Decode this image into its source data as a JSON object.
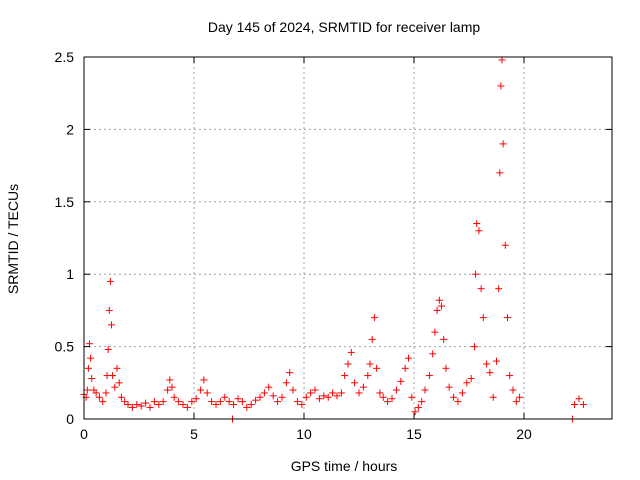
{
  "chart_data": {
    "type": "scatter",
    "title": "Day 145 of 2024, SRMTID for receiver lamp",
    "xlabel": "GPS time / hours",
    "ylabel": "SRMTID / TECUs",
    "xlim": [
      0,
      24
    ],
    "ylim": [
      0,
      2.5
    ],
    "xticks": [
      0,
      5,
      10,
      15,
      20
    ],
    "yticks": [
      0,
      0.5,
      1,
      1.5,
      2,
      2.5
    ],
    "xtick_labels": [
      "0",
      "5",
      "10",
      "15",
      "20"
    ],
    "ytick_labels": [
      "0",
      "0.5",
      "1",
      "1.5",
      "2",
      "2.5"
    ],
    "grid": true,
    "marker": "+",
    "color": "#ff0000",
    "series": [
      {
        "name": "SRMTID",
        "points": [
          [
            0.0,
            0.17
          ],
          [
            0.1,
            0.15
          ],
          [
            0.15,
            0.2
          ],
          [
            0.2,
            0.35
          ],
          [
            0.25,
            0.52
          ],
          [
            0.3,
            0.42
          ],
          [
            0.35,
            0.28
          ],
          [
            0.45,
            0.2
          ],
          [
            0.55,
            0.18
          ],
          [
            0.7,
            0.15
          ],
          [
            0.85,
            0.12
          ],
          [
            1.0,
            0.18
          ],
          [
            1.05,
            0.3
          ],
          [
            1.1,
            0.48
          ],
          [
            1.15,
            0.75
          ],
          [
            1.2,
            0.95
          ],
          [
            1.25,
            0.65
          ],
          [
            1.3,
            0.3
          ],
          [
            1.4,
            0.22
          ],
          [
            1.5,
            0.35
          ],
          [
            1.6,
            0.25
          ],
          [
            1.7,
            0.15
          ],
          [
            1.85,
            0.12
          ],
          [
            2.0,
            0.1
          ],
          [
            2.2,
            0.08
          ],
          [
            2.4,
            0.1
          ],
          [
            2.6,
            0.09
          ],
          [
            2.8,
            0.11
          ],
          [
            3.0,
            0.08
          ],
          [
            3.2,
            0.12
          ],
          [
            3.4,
            0.1
          ],
          [
            3.6,
            0.12
          ],
          [
            3.8,
            0.2
          ],
          [
            3.9,
            0.27
          ],
          [
            4.0,
            0.22
          ],
          [
            4.1,
            0.15
          ],
          [
            4.3,
            0.12
          ],
          [
            4.5,
            0.1
          ],
          [
            4.7,
            0.08
          ],
          [
            4.9,
            0.12
          ],
          [
            5.1,
            0.14
          ],
          [
            5.3,
            0.2
          ],
          [
            5.45,
            0.27
          ],
          [
            5.6,
            0.18
          ],
          [
            5.8,
            0.12
          ],
          [
            6.0,
            0.1
          ],
          [
            6.2,
            0.12
          ],
          [
            6.4,
            0.15
          ],
          [
            6.6,
            0.12
          ],
          [
            6.75,
            0.0
          ],
          [
            6.8,
            0.1
          ],
          [
            7.0,
            0.14
          ],
          [
            7.2,
            0.12
          ],
          [
            7.4,
            0.08
          ],
          [
            7.6,
            0.1
          ],
          [
            7.8,
            0.13
          ],
          [
            8.0,
            0.15
          ],
          [
            8.2,
            0.18
          ],
          [
            8.4,
            0.22
          ],
          [
            8.6,
            0.16
          ],
          [
            8.8,
            0.12
          ],
          [
            9.0,
            0.15
          ],
          [
            9.2,
            0.25
          ],
          [
            9.35,
            0.32
          ],
          [
            9.5,
            0.2
          ],
          [
            9.7,
            0.12
          ],
          [
            9.9,
            0.1
          ],
          [
            10.1,
            0.15
          ],
          [
            10.3,
            0.18
          ],
          [
            10.5,
            0.2
          ],
          [
            10.7,
            0.14
          ],
          [
            10.9,
            0.16
          ],
          [
            11.1,
            0.15
          ],
          [
            11.3,
            0.18
          ],
          [
            11.5,
            0.16
          ],
          [
            11.7,
            0.18
          ],
          [
            11.85,
            0.3
          ],
          [
            12.0,
            0.38
          ],
          [
            12.15,
            0.46
          ],
          [
            12.3,
            0.25
          ],
          [
            12.5,
            0.18
          ],
          [
            12.7,
            0.22
          ],
          [
            12.9,
            0.3
          ],
          [
            13.0,
            0.38
          ],
          [
            13.1,
            0.55
          ],
          [
            13.2,
            0.7
          ],
          [
            13.3,
            0.35
          ],
          [
            13.45,
            0.18
          ],
          [
            13.6,
            0.15
          ],
          [
            13.8,
            0.12
          ],
          [
            14.0,
            0.14
          ],
          [
            14.2,
            0.2
          ],
          [
            14.4,
            0.26
          ],
          [
            14.6,
            0.35
          ],
          [
            14.75,
            0.42
          ],
          [
            14.9,
            0.15
          ],
          [
            15.05,
            0.05
          ],
          [
            15.2,
            0.08
          ],
          [
            15.35,
            0.12
          ],
          [
            15.5,
            0.2
          ],
          [
            15.7,
            0.3
          ],
          [
            15.85,
            0.45
          ],
          [
            15.95,
            0.6
          ],
          [
            16.05,
            0.75
          ],
          [
            16.15,
            0.82
          ],
          [
            16.25,
            0.78
          ],
          [
            16.35,
            0.55
          ],
          [
            16.45,
            0.35
          ],
          [
            16.6,
            0.22
          ],
          [
            16.8,
            0.15
          ],
          [
            17.0,
            0.12
          ],
          [
            17.2,
            0.18
          ],
          [
            17.4,
            0.25
          ],
          [
            17.6,
            0.28
          ],
          [
            17.75,
            0.5
          ],
          [
            17.8,
            1.0
          ],
          [
            17.85,
            1.35
          ],
          [
            17.95,
            1.3
          ],
          [
            18.05,
            0.9
          ],
          [
            18.15,
            0.7
          ],
          [
            18.3,
            0.38
          ],
          [
            18.45,
            0.32
          ],
          [
            18.6,
            0.15
          ],
          [
            18.75,
            0.4
          ],
          [
            18.85,
            0.9
          ],
          [
            18.9,
            1.7
          ],
          [
            18.95,
            2.3
          ],
          [
            19.0,
            2.48
          ],
          [
            19.05,
            1.9
          ],
          [
            19.15,
            1.2
          ],
          [
            19.25,
            0.7
          ],
          [
            19.35,
            0.3
          ],
          [
            19.5,
            0.2
          ],
          [
            19.65,
            0.12
          ],
          [
            19.8,
            0.15
          ],
          [
            22.2,
            0.0
          ],
          [
            22.3,
            0.1
          ],
          [
            22.5,
            0.14
          ],
          [
            22.7,
            0.1
          ]
        ]
      }
    ]
  }
}
